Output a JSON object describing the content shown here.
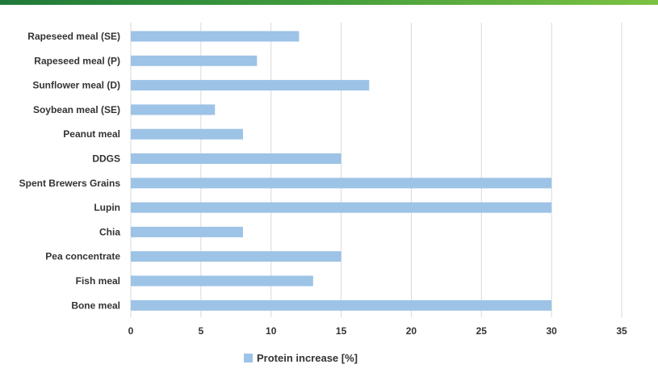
{
  "chart_data": {
    "type": "bar",
    "orientation": "horizontal",
    "categories": [
      "Rapeseed meal (SE)",
      "Rapeseed meal (P)",
      "Sunflower meal (D)",
      "Soybean meal (SE)",
      "Peanut meal",
      "DDGS",
      "Spent Brewers Grains",
      "Lupin",
      "Chia",
      "Pea concentrate",
      "Fish meal",
      "Bone meal"
    ],
    "series": [
      {
        "name": "Protein increase [%]",
        "values": [
          12,
          9,
          17,
          6,
          8,
          15,
          30,
          30,
          8,
          15,
          13,
          30
        ]
      }
    ],
    "xlim": [
      0,
      35
    ],
    "xticks": [
      "0",
      "5",
      "10",
      "15",
      "20",
      "25",
      "30",
      "35"
    ],
    "grid": true,
    "legend": "bottom",
    "colors": {
      "bar": "#9dc3e6",
      "grid": "#d9d9d9",
      "topbar_start": "#1f7a3a",
      "topbar_end": "#7cc242"
    }
  }
}
